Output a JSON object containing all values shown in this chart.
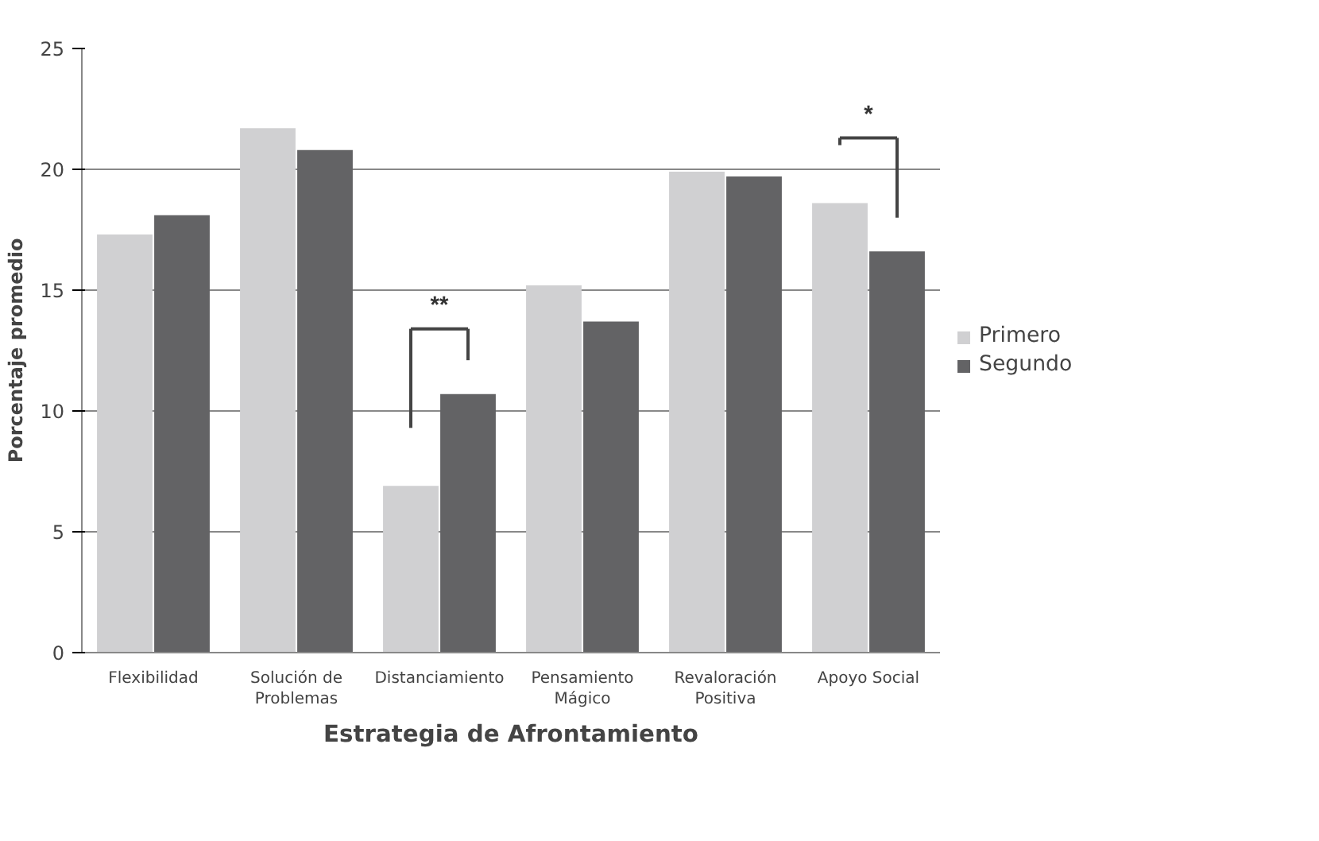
{
  "chart_data": {
    "type": "bar",
    "xlabel": "Estrategia de Afrontamiento",
    "ylabel": "Porcentaje promedio",
    "categories": [
      "Flexibilidad",
      "Solución de Problemas",
      "Distanciamiento",
      "Pensamiento Mágico",
      "Revaloración Positiva",
      "Apoyo Social"
    ],
    "series": [
      {
        "name": "Primero",
        "color": "#d0d0d2",
        "values": [
          17.3,
          21.7,
          6.9,
          15.2,
          19.9,
          18.6
        ]
      },
      {
        "name": "Segundo",
        "color": "#636365",
        "values": [
          18.1,
          20.8,
          10.7,
          13.7,
          19.7,
          16.6
        ]
      }
    ],
    "ylim": [
      0,
      25
    ],
    "yticks": [
      0,
      5,
      10,
      15,
      20,
      25
    ],
    "grid": "y",
    "legend": "right",
    "annotations": [
      "**",
      "*"
    ]
  }
}
